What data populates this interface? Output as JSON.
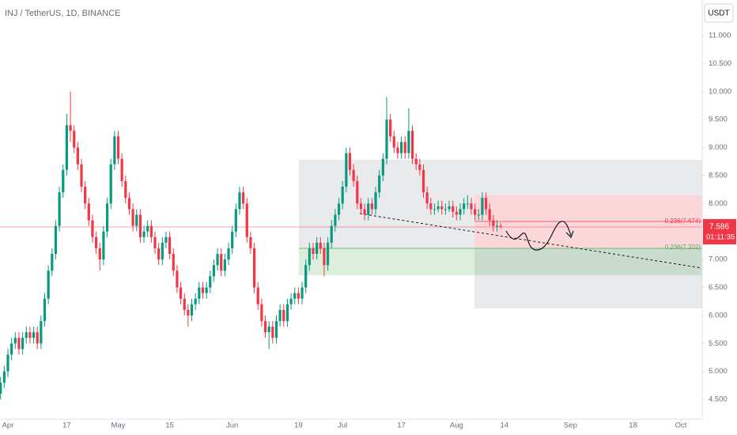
{
  "chart_data": {
    "type": "candlestick",
    "title": "INJ / TetherUS, 1D, BINANCE",
    "currency_button": "USDT",
    "last_price": 7.586,
    "countdown": "01:11:35",
    "annotations": [
      "0.236(7.674)",
      "0.236(7.202)"
    ],
    "up_color": "#089981",
    "down_color": "#f23645",
    "grid": false,
    "xlim": [
      -2.15,
      188.8
    ],
    "ylim": [
      4.147,
      11.636
    ],
    "xticks": [
      {
        "value": 0,
        "label": "Apr"
      },
      {
        "value": 16,
        "label": "17"
      },
      {
        "value": 30,
        "label": "May"
      },
      {
        "value": 44,
        "label": "15"
      },
      {
        "value": 61,
        "label": "Jun"
      },
      {
        "value": 79,
        "label": "19"
      },
      {
        "value": 91,
        "label": "Jul"
      },
      {
        "value": 107,
        "label": "17"
      },
      {
        "value": 122,
        "label": "Aug"
      },
      {
        "value": 135,
        "label": "14"
      },
      {
        "value": 153,
        "label": "Sep"
      },
      {
        "value": 170,
        "label": "18"
      },
      {
        "value": 183,
        "label": "Oct"
      }
    ],
    "yticks": [
      {
        "value": 4.5,
        "label": "4.500"
      },
      {
        "value": 5,
        "label": "5.000"
      },
      {
        "value": 5.5,
        "label": "5.500"
      },
      {
        "value": 6,
        "label": "6.000"
      },
      {
        "value": 6.5,
        "label": "6.500"
      },
      {
        "value": 7,
        "label": "7.000"
      },
      {
        "value": 8,
        "label": "8.000"
      },
      {
        "value": 8.5,
        "label": "8.500"
      },
      {
        "value": 9,
        "label": "9.000"
      },
      {
        "value": 9.5,
        "label": "9.500"
      },
      {
        "value": 10,
        "label": "10.000"
      },
      {
        "value": 10.5,
        "label": "10.500"
      },
      {
        "value": 11,
        "label": "11.000"
      }
    ],
    "x": [
      -2,
      -1,
      0,
      1,
      2,
      3,
      4,
      5,
      6,
      7,
      8,
      9,
      10,
      11,
      12,
      13,
      14,
      15,
      16,
      17,
      18,
      19,
      20,
      21,
      22,
      23,
      24,
      25,
      26,
      27,
      28,
      29,
      30,
      31,
      32,
      33,
      34,
      35,
      36,
      37,
      38,
      39,
      40,
      41,
      42,
      43,
      44,
      45,
      46,
      47,
      48,
      49,
      50,
      51,
      52,
      53,
      54,
      55,
      56,
      57,
      58,
      59,
      60,
      61,
      62,
      63,
      64,
      65,
      66,
      67,
      68,
      69,
      70,
      71,
      72,
      73,
      74,
      75,
      76,
      77,
      78,
      79,
      80,
      81,
      82,
      83,
      84,
      85,
      86,
      87,
      88,
      89,
      90,
      91,
      92,
      93,
      94,
      95,
      96,
      97,
      98,
      99,
      100,
      101,
      102,
      103,
      104,
      105,
      106,
      107,
      108,
      109,
      110,
      111,
      112,
      113,
      114,
      115,
      116,
      117,
      118,
      119,
      120,
      121,
      122,
      123,
      124,
      125,
      126,
      127,
      128,
      129,
      130,
      131,
      132,
      133,
      134
    ],
    "open": [
      4.6,
      4.8,
      5.0,
      5.3,
      5.5,
      5.6,
      5.4,
      5.6,
      5.7,
      5.6,
      5.7,
      5.5,
      5.9,
      6.3,
      6.8,
      7.1,
      7.6,
      8.2,
      8.6,
      9.4,
      9.3,
      9.0,
      8.7,
      8.3,
      8.0,
      7.7,
      7.4,
      7.2,
      7.0,
      7.5,
      8.0,
      8.7,
      9.2,
      8.8,
      8.4,
      8.1,
      7.9,
      7.6,
      7.8,
      7.4,
      7.5,
      7.6,
      7.4,
      7.2,
      7.0,
      7.3,
      7.4,
      7.1,
      6.8,
      6.5,
      6.3,
      6.1,
      6.0,
      6.2,
      6.3,
      6.5,
      6.4,
      6.5,
      6.7,
      6.9,
      7.1,
      6.8,
      7.0,
      7.2,
      7.5,
      7.9,
      8.2,
      8.0,
      7.4,
      7.2,
      6.5,
      6.2,
      5.9,
      5.7,
      5.8,
      5.6,
      5.9,
      6.1,
      5.9,
      6.2,
      6.3,
      6.4,
      6.3,
      6.5,
      6.9,
      7.2,
      7.1,
      7.3,
      7.2,
      6.9,
      7.3,
      7.6,
      7.8,
      8.0,
      8.3,
      8.9,
      8.6,
      8.4,
      8.0,
      7.9,
      7.8,
      8.0,
      7.9,
      8.2,
      8.5,
      8.8,
      9.5,
      9.2,
      9.0,
      8.9,
      9.1,
      8.9,
      9.3,
      8.8,
      8.7,
      8.6,
      8.2,
      8.0,
      7.9,
      7.9,
      7.95,
      7.9,
      7.9,
      7.95,
      7.85,
      7.8,
      7.9,
      8.0,
      8.0,
      7.9,
      7.8,
      7.8,
      8.1,
      7.9,
      7.7,
      7.6,
      7.6
    ],
    "high": [
      4.9,
      5.1,
      5.4,
      5.6,
      5.7,
      5.7,
      5.7,
      5.8,
      5.8,
      5.8,
      5.8,
      6.0,
      6.4,
      6.9,
      7.2,
      7.7,
      8.3,
      8.7,
      9.6,
      10.0,
      9.4,
      9.1,
      8.8,
      8.4,
      8.1,
      7.8,
      7.5,
      7.3,
      7.6,
      8.1,
      8.8,
      9.3,
      9.3,
      8.9,
      8.5,
      8.2,
      8.0,
      7.9,
      7.9,
      7.6,
      7.7,
      7.7,
      7.5,
      7.3,
      7.4,
      7.5,
      7.5,
      7.2,
      6.9,
      6.6,
      6.4,
      6.2,
      6.3,
      6.4,
      6.6,
      6.6,
      6.6,
      6.8,
      7.0,
      7.2,
      7.2,
      7.1,
      7.3,
      7.6,
      8.0,
      8.3,
      8.3,
      8.1,
      7.5,
      7.3,
      6.6,
      6.3,
      6.0,
      5.9,
      5.9,
      6.0,
      6.2,
      6.2,
      6.3,
      6.4,
      6.5,
      6.5,
      6.6,
      7.0,
      7.3,
      7.3,
      7.4,
      7.4,
      7.3,
      7.4,
      7.7,
      7.9,
      8.1,
      8.4,
      9.0,
      9.0,
      8.7,
      8.5,
      8.1,
      8.0,
      8.1,
      8.1,
      8.3,
      8.6,
      8.9,
      9.9,
      9.6,
      9.3,
      9.1,
      9.2,
      9.2,
      9.7,
      9.4,
      8.9,
      8.8,
      8.7,
      8.3,
      8.1,
      8.0,
      8.05,
      8.05,
      8.0,
      8.05,
      8.05,
      7.95,
      8.0,
      8.1,
      8.15,
      8.1,
      8.0,
      7.9,
      8.2,
      8.2,
      8.0,
      7.8,
      7.7,
      7.65
    ],
    "low": [
      4.5,
      4.7,
      4.9,
      5.2,
      5.4,
      5.3,
      5.3,
      5.5,
      5.5,
      5.5,
      5.4,
      5.4,
      5.8,
      6.2,
      6.7,
      7.0,
      7.5,
      8.1,
      8.5,
      9.1,
      8.9,
      8.6,
      8.2,
      7.9,
      7.6,
      7.3,
      7.1,
      6.8,
      6.9,
      7.4,
      7.9,
      8.6,
      8.7,
      8.3,
      8.0,
      7.8,
      7.5,
      7.5,
      7.3,
      7.3,
      7.4,
      7.3,
      7.1,
      6.9,
      6.9,
      7.2,
      7.0,
      6.7,
      6.4,
      6.2,
      6.0,
      5.8,
      5.9,
      6.1,
      6.2,
      6.3,
      6.3,
      6.4,
      6.6,
      6.8,
      6.7,
      6.7,
      6.9,
      7.1,
      7.4,
      7.8,
      7.9,
      7.3,
      7.1,
      6.4,
      6.1,
      5.8,
      5.6,
      5.4,
      5.5,
      5.5,
      5.8,
      5.8,
      5.8,
      6.1,
      6.2,
      6.2,
      6.2,
      6.4,
      6.8,
      7.0,
      7.0,
      7.1,
      6.7,
      6.8,
      7.2,
      7.5,
      7.7,
      7.9,
      8.2,
      8.5,
      8.3,
      7.9,
      7.8,
      7.7,
      7.7,
      7.8,
      7.8,
      8.1,
      8.4,
      8.7,
      9.1,
      8.9,
      8.8,
      8.8,
      8.8,
      8.8,
      8.7,
      8.6,
      8.5,
      8.1,
      7.9,
      7.8,
      7.8,
      7.85,
      7.8,
      7.8,
      7.85,
      7.75,
      7.7,
      7.7,
      7.8,
      7.9,
      7.8,
      7.7,
      7.7,
      7.7,
      7.8,
      7.6,
      7.5,
      7.5,
      7.55
    ],
    "close": [
      4.8,
      5.0,
      5.3,
      5.5,
      5.6,
      5.4,
      5.6,
      5.7,
      5.6,
      5.7,
      5.5,
      5.9,
      6.3,
      6.8,
      7.1,
      7.6,
      8.2,
      8.6,
      9.4,
      9.3,
      9.0,
      8.7,
      8.3,
      8.0,
      7.7,
      7.4,
      7.2,
      7.0,
      7.5,
      8.0,
      8.7,
      9.2,
      8.8,
      8.4,
      8.1,
      7.9,
      7.6,
      7.8,
      7.4,
      7.5,
      7.6,
      7.4,
      7.2,
      7.0,
      7.3,
      7.4,
      7.1,
      6.8,
      6.5,
      6.3,
      6.1,
      6.0,
      6.2,
      6.3,
      6.5,
      6.4,
      6.5,
      6.7,
      6.9,
      7.1,
      6.8,
      7.0,
      7.2,
      7.5,
      7.9,
      8.2,
      8.0,
      7.4,
      7.2,
      6.5,
      6.2,
      5.9,
      5.7,
      5.8,
      5.6,
      5.9,
      6.1,
      5.9,
      6.2,
      6.3,
      6.4,
      6.3,
      6.5,
      6.9,
      7.2,
      7.1,
      7.3,
      7.2,
      6.9,
      7.3,
      7.6,
      7.8,
      8.0,
      8.3,
      8.9,
      8.6,
      8.4,
      8.0,
      7.9,
      7.8,
      8.0,
      7.9,
      8.2,
      8.5,
      8.8,
      9.5,
      9.2,
      9.0,
      8.9,
      9.1,
      8.9,
      9.3,
      8.8,
      8.7,
      8.6,
      8.2,
      8.0,
      7.9,
      7.9,
      7.95,
      7.9,
      7.9,
      7.95,
      7.85,
      7.8,
      7.9,
      8.0,
      8.0,
      7.9,
      7.8,
      7.8,
      8.1,
      7.9,
      7.7,
      7.6,
      7.6,
      7.586
    ]
  }
}
